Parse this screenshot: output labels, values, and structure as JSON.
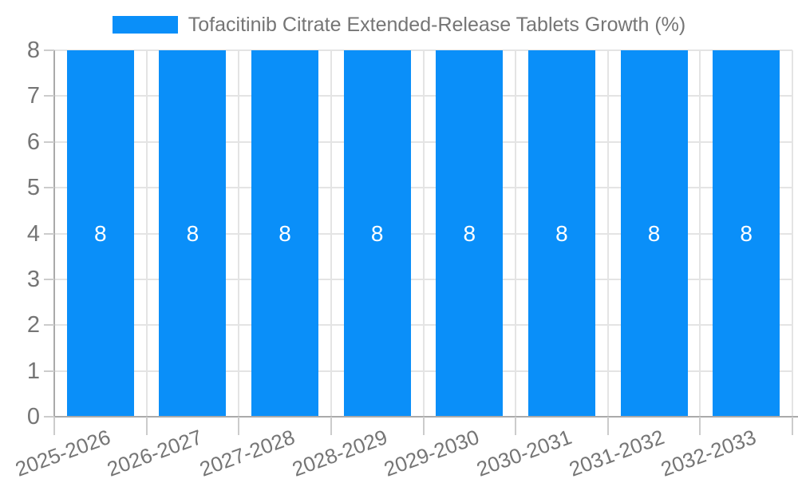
{
  "chart_data": {
    "type": "bar",
    "title": "Tofacitinib Citrate Extended-Release Tablets Growth (%)",
    "categories": [
      "2025-2026",
      "2026-2027",
      "2027-2028",
      "2028-2029",
      "2029-2030",
      "2030-2031",
      "2031-2032",
      "2032-2033"
    ],
    "values": [
      8,
      8,
      8,
      8,
      8,
      8,
      8,
      8
    ],
    "bar_value_labels": [
      "8",
      "8",
      "8",
      "8",
      "8",
      "8",
      "8",
      "8"
    ],
    "xlabel": "",
    "ylabel": "",
    "ylim": [
      0,
      8
    ],
    "yticks": [
      0,
      1,
      2,
      3,
      4,
      5,
      6,
      7,
      8
    ],
    "ytick_labels": [
      "0",
      "1",
      "2",
      "3",
      "4",
      "5",
      "6",
      "7",
      "8"
    ],
    "grid": true,
    "legend_position": "top-center",
    "x_label_rotation_deg": -20,
    "colors": {
      "bar": "#0A8FF9",
      "bar_value_label": "#FFFFFF",
      "axis_line": "#AAAAAA",
      "gridline": "#E4E4E4",
      "tick": "#CCCCCC",
      "text": "#757575"
    }
  },
  "legend": {
    "label": "Tofacitinib Citrate Extended-Release Tablets Growth (%)",
    "swatch_color": "#0A8FF9"
  }
}
